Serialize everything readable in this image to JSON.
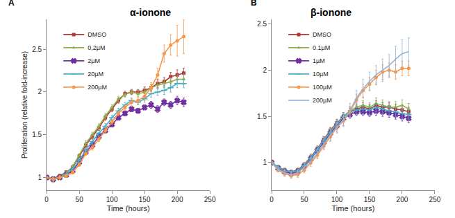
{
  "chart_data": [
    {
      "type": "line",
      "title": "α-ionone",
      "annotations": [
        "A"
      ],
      "x_label": "Time (hours)",
      "y_label": "Proliferation (relative fold-increase)",
      "x": [
        0,
        10,
        20,
        30,
        40,
        50,
        60,
        70,
        80,
        90,
        100,
        110,
        120,
        130,
        140,
        150,
        160,
        170,
        180,
        190,
        200,
        210
      ],
      "xlim": [
        0,
        250
      ],
      "xticks": [
        0,
        50,
        100,
        150,
        200,
        250
      ],
      "ylim": [
        0.85,
        2.85
      ],
      "yticks": [
        1,
        1.5,
        2,
        2.5
      ],
      "legend": "top-left",
      "grid": false,
      "series": [
        {
          "name": "DMSO",
          "color": "#b03a3a",
          "marker": "square",
          "values": [
            1,
            0.99,
            1.02,
            1.06,
            1.12,
            1.25,
            1.38,
            1.48,
            1.58,
            1.7,
            1.8,
            1.9,
            1.98,
            2.0,
            2.0,
            2.02,
            2.05,
            2.1,
            2.12,
            2.18,
            2.2,
            2.22
          ],
          "errors": [
            0.01,
            0.02,
            0.02,
            0.02,
            0.02,
            0.02,
            0.03,
            0.03,
            0.03,
            0.03,
            0.03,
            0.03,
            0.03,
            0.03,
            0.03,
            0.04,
            0.04,
            0.05,
            0.05,
            0.05,
            0.06,
            0.06
          ]
        },
        {
          "name": "0,2µM",
          "color": "#8db04a",
          "marker": "triangle-up",
          "values": [
            1,
            0.97,
            1.01,
            1.05,
            1.13,
            1.26,
            1.4,
            1.5,
            1.6,
            1.72,
            1.82,
            1.92,
            1.97,
            2.0,
            1.98,
            2.0,
            2.05,
            2.08,
            2.1,
            2.12,
            2.15,
            2.15
          ],
          "errors": [
            0.01,
            0.03,
            0.02,
            0.02,
            0.02,
            0.02,
            0.03,
            0.03,
            0.03,
            0.03,
            0.03,
            0.03,
            0.03,
            0.03,
            0.03,
            0.04,
            0.04,
            0.04,
            0.05,
            0.05,
            0.05,
            0.06
          ]
        },
        {
          "name": "2µM",
          "color": "#7030a0",
          "marker": "x",
          "values": [
            1,
            0.98,
            1.0,
            1.03,
            1.08,
            1.18,
            1.3,
            1.38,
            1.48,
            1.55,
            1.62,
            1.7,
            1.75,
            1.8,
            1.78,
            1.82,
            1.85,
            1.8,
            1.88,
            1.85,
            1.9,
            1.88
          ],
          "errors": [
            0.01,
            0.02,
            0.02,
            0.02,
            0.02,
            0.02,
            0.02,
            0.03,
            0.03,
            0.03,
            0.03,
            0.03,
            0.03,
            0.03,
            0.03,
            0.03,
            0.04,
            0.04,
            0.04,
            0.04,
            0.05,
            0.05
          ]
        },
        {
          "name": "20µM",
          "color": "#4bacc6",
          "marker": "line-ew",
          "values": [
            1,
            0.99,
            1.0,
            1.04,
            1.1,
            1.2,
            1.32,
            1.42,
            1.52,
            1.6,
            1.7,
            1.78,
            1.85,
            1.9,
            1.88,
            1.92,
            1.98,
            2.0,
            2.02,
            2.05,
            2.1,
            2.1
          ],
          "errors": [
            0.01,
            0.02,
            0.02,
            0.02,
            0.02,
            0.02,
            0.02,
            0.03,
            0.03,
            0.03,
            0.03,
            0.03,
            0.03,
            0.03,
            0.03,
            0.04,
            0.04,
            0.04,
            0.05,
            0.05,
            0.05,
            0.05
          ]
        },
        {
          "name": "200µM",
          "color": "#f79646",
          "marker": "circle",
          "values": [
            1,
            0.98,
            1.0,
            1.02,
            1.06,
            1.15,
            1.28,
            1.35,
            1.45,
            1.55,
            1.65,
            1.75,
            1.82,
            1.88,
            1.9,
            1.95,
            2.05,
            2.2,
            2.45,
            2.55,
            2.6,
            2.65
          ],
          "errors": [
            0.01,
            0.02,
            0.02,
            0.02,
            0.02,
            0.02,
            0.02,
            0.03,
            0.03,
            0.03,
            0.03,
            0.03,
            0.03,
            0.04,
            0.04,
            0.05,
            0.06,
            0.08,
            0.1,
            0.12,
            0.18,
            0.2
          ]
        }
      ]
    },
    {
      "type": "line",
      "title": "β-ionone",
      "annotations": [
        "B"
      ],
      "x_label": "Time (hours)",
      "x": [
        0,
        10,
        20,
        30,
        40,
        50,
        60,
        70,
        80,
        90,
        100,
        110,
        120,
        130,
        140,
        150,
        160,
        170,
        180,
        190,
        200,
        210
      ],
      "xlim": [
        0,
        250
      ],
      "xticks": [
        0,
        50,
        100,
        150,
        200,
        250
      ],
      "ylim": [
        0.7,
        2.55
      ],
      "yticks": [
        1,
        1.5,
        2,
        2.5
      ],
      "legend": "top-left",
      "grid": false,
      "series": [
        {
          "name": "DMSO",
          "color": "#b03a3a",
          "marker": "square",
          "values": [
            1,
            0.95,
            0.92,
            0.9,
            0.92,
            0.98,
            1.06,
            1.15,
            1.25,
            1.35,
            1.43,
            1.5,
            1.55,
            1.58,
            1.6,
            1.58,
            1.62,
            1.6,
            1.6,
            1.58,
            1.57,
            1.55
          ],
          "errors": [
            0.01,
            0.02,
            0.02,
            0.02,
            0.02,
            0.02,
            0.03,
            0.03,
            0.03,
            0.03,
            0.04,
            0.04,
            0.04,
            0.05,
            0.05,
            0.05,
            0.05,
            0.05,
            0.05,
            0.05,
            0.05,
            0.05
          ]
        },
        {
          "name": "0.1µM",
          "color": "#8db04a",
          "marker": "triangle-up",
          "values": [
            1,
            0.94,
            0.91,
            0.89,
            0.91,
            0.97,
            1.05,
            1.14,
            1.24,
            1.34,
            1.42,
            1.5,
            1.56,
            1.6,
            1.62,
            1.6,
            1.64,
            1.62,
            1.6,
            1.6,
            1.62,
            1.58
          ],
          "errors": [
            0.01,
            0.02,
            0.02,
            0.02,
            0.02,
            0.02,
            0.03,
            0.03,
            0.03,
            0.03,
            0.04,
            0.04,
            0.04,
            0.05,
            0.05,
            0.05,
            0.06,
            0.06,
            0.06,
            0.06,
            0.06,
            0.06
          ]
        },
        {
          "name": "1µM",
          "color": "#7030a0",
          "marker": "x",
          "values": [
            1,
            0.94,
            0.9,
            0.88,
            0.9,
            0.96,
            1.04,
            1.13,
            1.22,
            1.32,
            1.4,
            1.48,
            1.52,
            1.55,
            1.55,
            1.54,
            1.56,
            1.55,
            1.54,
            1.52,
            1.5,
            1.48
          ],
          "errors": [
            0.01,
            0.02,
            0.02,
            0.02,
            0.02,
            0.02,
            0.03,
            0.03,
            0.03,
            0.03,
            0.04,
            0.04,
            0.04,
            0.04,
            0.04,
            0.04,
            0.05,
            0.05,
            0.05,
            0.05,
            0.05,
            0.05
          ]
        },
        {
          "name": "10µM",
          "color": "#4bacc6",
          "marker": "line-ew",
          "values": [
            1,
            0.95,
            0.91,
            0.9,
            0.91,
            0.97,
            1.05,
            1.14,
            1.24,
            1.33,
            1.42,
            1.5,
            1.54,
            1.57,
            1.58,
            1.57,
            1.6,
            1.58,
            1.56,
            1.55,
            1.53,
            1.52
          ],
          "errors": [
            0.01,
            0.02,
            0.02,
            0.02,
            0.02,
            0.02,
            0.03,
            0.03,
            0.03,
            0.03,
            0.04,
            0.04,
            0.04,
            0.04,
            0.05,
            0.05,
            0.05,
            0.05,
            0.05,
            0.05,
            0.05,
            0.05
          ]
        },
        {
          "name": "100µM",
          "color": "#f79646",
          "marker": "circle",
          "values": [
            1,
            0.92,
            0.88,
            0.86,
            0.87,
            0.92,
            1.0,
            1.08,
            1.18,
            1.28,
            1.38,
            1.45,
            1.55,
            1.68,
            1.78,
            1.85,
            1.92,
            1.98,
            2.0,
            1.98,
            2.02,
            2.02
          ],
          "errors": [
            0.01,
            0.02,
            0.03,
            0.03,
            0.03,
            0.03,
            0.04,
            0.04,
            0.04,
            0.05,
            0.05,
            0.05,
            0.06,
            0.06,
            0.07,
            0.07,
            0.08,
            0.08,
            0.08,
            0.08,
            0.08,
            0.08
          ]
        },
        {
          "name": "200µM",
          "color": "#95b3d7",
          "marker": "none",
          "values": [
            1,
            0.93,
            0.89,
            0.87,
            0.89,
            0.95,
            1.02,
            1.1,
            1.2,
            1.3,
            1.38,
            1.46,
            1.56,
            1.7,
            1.8,
            1.88,
            1.95,
            2.0,
            2.05,
            2.12,
            2.18,
            2.2
          ],
          "errors": [
            0.01,
            0.03,
            0.03,
            0.03,
            0.03,
            0.04,
            0.04,
            0.05,
            0.05,
            0.06,
            0.06,
            0.07,
            0.08,
            0.08,
            0.1,
            0.1,
            0.1,
            0.12,
            0.12,
            0.14,
            0.15,
            0.15
          ]
        }
      ]
    }
  ]
}
